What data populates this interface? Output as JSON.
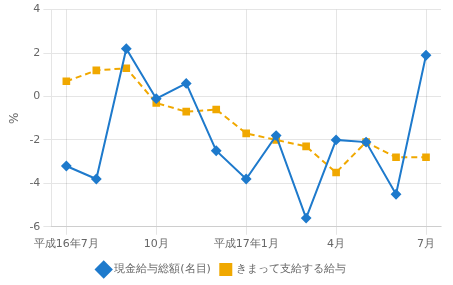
{
  "chart_data": {
    "type": "line",
    "ylabel": "%",
    "categories": [
      "平成16年7月",
      null,
      null,
      "10月",
      null,
      null,
      "平成17年1月",
      null,
      null,
      "4月",
      null,
      null,
      "7月"
    ],
    "series": [
      {
        "name": "現金給与総額(名目)",
        "color": "#1e7acc",
        "marker": "diamond",
        "line_style": "solid",
        "values": [
          -3.2,
          -3.8,
          2.2,
          -0.1,
          0.6,
          -2.5,
          -3.8,
          -1.8,
          -5.6,
          -2.0,
          -2.1,
          -4.5,
          1.9
        ]
      },
      {
        "name": "きまって支給する給与",
        "color": "#f0a800",
        "marker": "square",
        "line_style": "dashed",
        "values": [
          0.7,
          1.2,
          1.3,
          -0.3,
          -0.7,
          -0.6,
          -1.7,
          -2.0,
          -2.3,
          -3.5,
          -2.1,
          -2.8,
          -2.8
        ]
      }
    ],
    "ylim": [
      -6,
      4
    ],
    "yticks": [
      -6,
      -4,
      -2,
      0,
      2,
      4
    ],
    "grid": true,
    "legend": "bottom"
  }
}
